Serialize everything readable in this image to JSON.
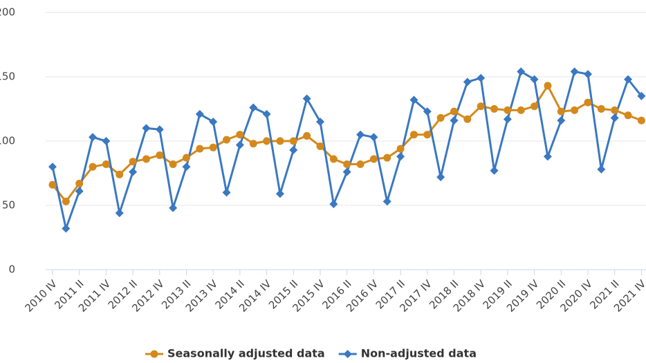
{
  "chart_data": {
    "type": "line",
    "categories": [
      "2010 IV",
      null,
      "2011 II",
      null,
      "2011 IV",
      null,
      "2012 II",
      null,
      "2012 IV",
      null,
      "2013 II",
      null,
      "2013 IV",
      null,
      "2014 II",
      null,
      "2014 IV",
      null,
      "2015 II",
      null,
      "2015 IV",
      null,
      "2016 II",
      null,
      "2016 IV",
      null,
      "2017 II",
      null,
      "2017 IV",
      null,
      "2018 II",
      null,
      "2018 IV",
      null,
      "2019 II",
      null,
      "2019 IV",
      null,
      "2020 II",
      null,
      "2020 IV",
      null,
      "2021 II",
      null,
      "2021 IV"
    ],
    "series": [
      {
        "name": "Seasonally adjusted data",
        "color": "#d4891c",
        "marker": "circle",
        "values": [
          66,
          53,
          67,
          80,
          82,
          74,
          84,
          86,
          89,
          82,
          87,
          94,
          95,
          101,
          105,
          98,
          100,
          100,
          100,
          104,
          96,
          86,
          82,
          82,
          86,
          87,
          94,
          105,
          105,
          118,
          123,
          117,
          127,
          125,
          124,
          124,
          127,
          143,
          123,
          124,
          130,
          125,
          124,
          120,
          116
        ]
      },
      {
        "name": "Non-adjusted data",
        "color": "#3a78c2",
        "marker": "diamond",
        "values": [
          80,
          32,
          61,
          103,
          100,
          44,
          76,
          110,
          109,
          48,
          80,
          121,
          115,
          60,
          97,
          126,
          121,
          59,
          93,
          133,
          115,
          51,
          76,
          105,
          103,
          53,
          88,
          132,
          123,
          72,
          116,
          146,
          149,
          77,
          117,
          154,
          148,
          88,
          116,
          154,
          152,
          78,
          118,
          148,
          135
        ]
      }
    ],
    "ylim": [
      0,
      200
    ],
    "yticks": [
      0,
      50,
      100,
      150,
      200
    ],
    "grid": true
  }
}
